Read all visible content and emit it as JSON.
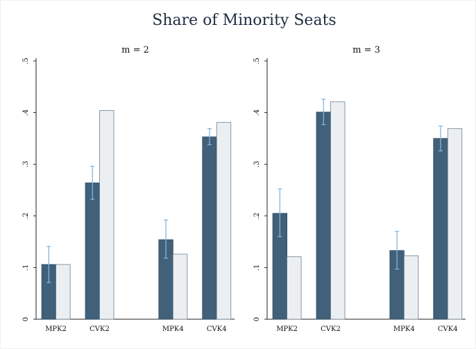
{
  "chart_data": {
    "type": "bar",
    "title": "Share of Minority Seats",
    "charts": [
      {
        "title": "m = 2",
        "categories": [
          "MPK2",
          "CVK2",
          "MPK4",
          "CVK4"
        ],
        "series": [
          {
            "color": "#41607a",
            "values": [
              0.106,
              0.264,
              0.154,
              0.353
            ],
            "ci_low": [
              0.071,
              0.232,
              0.118,
              0.338
            ],
            "ci_high": [
              0.141,
              0.296,
              0.192,
              0.369
            ]
          },
          {
            "color": "#eceff2",
            "values": [
              0.106,
              0.404,
              0.126,
              0.381
            ]
          }
        ],
        "ylim": [
          0,
          0.5
        ],
        "yticks": [
          0,
          {
            "value": 0.1,
            "label": ".1"
          },
          {
            "value": 0.2,
            "label": ".2"
          },
          {
            "value": 0.3,
            "label": ".3"
          },
          {
            "value": 0.4,
            "label": ".4"
          },
          {
            "value": 0.5,
            "label": ".5"
          }
        ]
      },
      {
        "title": "m = 3",
        "categories": [
          "MPK2",
          "CVK2",
          "MPK4",
          "CVK4"
        ],
        "series": [
          {
            "color": "#41607a",
            "values": [
              0.205,
              0.401,
              0.133,
              0.35
            ],
            "ci_low": [
              0.16,
              0.377,
              0.097,
              0.326
            ],
            "ci_high": [
              0.252,
              0.426,
              0.17,
              0.374
            ]
          },
          {
            "color": "#eceff2",
            "values": [
              0.121,
              0.421,
              0.123,
              0.369
            ]
          }
        ],
        "ylim": [
          0,
          0.5
        ],
        "yticks": [
          0,
          {
            "value": 0.1,
            "label": ".1"
          },
          {
            "value": 0.2,
            "label": ".2"
          },
          {
            "value": 0.3,
            "label": ".3"
          },
          {
            "value": 0.4,
            "label": ".4"
          },
          {
            "value": 0.5,
            "label": ".5"
          }
        ]
      }
    ]
  }
}
